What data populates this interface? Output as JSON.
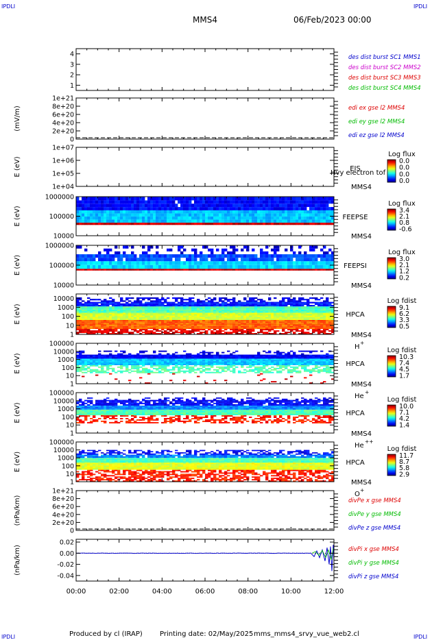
{
  "corner_labels": {
    "tl": "IPDLI",
    "tr": "IPDLI",
    "bl": "IPDLI",
    "br": "IPDLI"
  },
  "header": {
    "spacecraft": "MMS4",
    "date": "06/Feb/2023 00:00"
  },
  "footer": {
    "produced": "Produced by cl (IRAP)",
    "printed": "Printing date: 02/May/2025",
    "script": "mms_mms4_srvy_vue_web2.cl"
  },
  "colors": {
    "mms1": "#0000cc",
    "mms2": "#cc00cc",
    "mms3": "#dd0000",
    "mms4": "#00bb00",
    "x": "#dd0000",
    "y": "#00bb00",
    "z": "#0000cc"
  },
  "chart_data": {
    "type": "heatmap",
    "x_ticks": [
      "00:00",
      "02:00",
      "04:00",
      "06:00",
      "08:00",
      "10:00",
      "12:00"
    ],
    "xlim_hours": [
      0,
      12
    ],
    "panels": [
      {
        "id": "burst",
        "yticks": [
          "4",
          "3",
          "2",
          "1"
        ],
        "ylim": [
          0.5,
          4.5
        ],
        "legend": [
          {
            "text": "des dist burst SC1 MMS1",
            "color": "mms1"
          },
          {
            "text": "des dist burst SC2 MMS2",
            "color": "mms2"
          },
          {
            "text": "des dist burst SC3 MMS3",
            "color": "mms3"
          },
          {
            "text": "des dist burst SC4 MMS4",
            "color": "mms4"
          }
        ]
      },
      {
        "id": "edi",
        "ylabel": "(mV/m)",
        "yticks": [
          "1e+21",
          "8e+20",
          "6e+20",
          "4e+20",
          "2e+20",
          "0"
        ],
        "ylim": [
          0,
          1e+21
        ],
        "legend": [
          {
            "text": "edi ex gse l2 MMS4",
            "color": "x"
          },
          {
            "text": "edi ey gse l2 MMS4",
            "color": "y"
          },
          {
            "text": "edi ez gse l2 MMS4",
            "color": "z"
          }
        ]
      },
      {
        "id": "eis",
        "ylabel": "E (eV)",
        "yticks": [
          "1e+07",
          "1e+06",
          "1e+05",
          "1e+04"
        ],
        "ylim": [
          10000.0,
          10000000.0
        ],
        "log": true,
        "instrument": "EIS",
        "overlay": "Hvy electron tof",
        "sc": "MMS4",
        "cbar_title": "Log flux",
        "cbar": [
          "0.0",
          "0.0",
          "0.0",
          "0.0"
        ]
      },
      {
        "id": "feepse",
        "ylabel": "E (eV)",
        "yticks": [
          "1000000",
          "100000",
          "10000"
        ],
        "ylim": [
          10000.0,
          1000000.0
        ],
        "log": true,
        "instrument": "FEEPSE",
        "sc": "MMS4",
        "cbar_title": "Log flux",
        "cbar": [
          "3.4",
          "2.1",
          "0.8",
          "-0.6"
        ]
      },
      {
        "id": "feepsi",
        "ylabel": "E (eV)",
        "yticks": [
          "1000000",
          "100000",
          "10000"
        ],
        "ylim": [
          10000.0,
          1000000.0
        ],
        "log": true,
        "instrument": "FEEPSI",
        "sc": "MMS4",
        "cbar_title": "Log flux",
        "cbar": [
          "3.0",
          "2.1",
          "1.2",
          "0.2"
        ]
      },
      {
        "id": "hpca_h",
        "ylabel": "E (eV)",
        "yticks": [
          "10000",
          "1000",
          "100",
          "10",
          "1"
        ],
        "ylim": [
          1,
          30000.0
        ],
        "log": true,
        "instrument": "HPCA",
        "sc": "MMS4",
        "species": "H",
        "charge": "+",
        "cbar_title": "Log fdist",
        "cbar": [
          "9.1",
          "6.2",
          "3.3",
          "0.5"
        ]
      },
      {
        "id": "hpca_he1",
        "ylabel": "E (eV)",
        "yticks": [
          "100000",
          "10000",
          "1000",
          "100",
          "10",
          "1"
        ],
        "ylim": [
          1,
          100000.0
        ],
        "log": true,
        "instrument": "HPCA",
        "sc": "MMS4",
        "species": "He",
        "charge": "+",
        "cbar_title": "Log fdist",
        "cbar": [
          "10.3",
          "7.4",
          "4.5",
          "1.7"
        ]
      },
      {
        "id": "hpca_he2",
        "ylabel": "E (eV)",
        "yticks": [
          "100000",
          "10000",
          "1000",
          "100",
          "10",
          "1"
        ],
        "ylim": [
          1,
          100000.0
        ],
        "log": true,
        "instrument": "HPCA",
        "sc": "MMS4",
        "species": "He",
        "charge": "++",
        "cbar_title": "Log fdist",
        "cbar": [
          "10.0",
          "7.1",
          "4.2",
          "1.4"
        ]
      },
      {
        "id": "hpca_o",
        "ylabel": "E (eV)",
        "yticks": [
          "100000",
          "10000",
          "1000",
          "100",
          "10",
          "1"
        ],
        "ylim": [
          1,
          100000.0
        ],
        "log": true,
        "instrument": "HPCA",
        "sc": "MMS4",
        "species": "O",
        "charge": "+",
        "cbar_title": "Log fdist",
        "cbar": [
          "11.7",
          "8.7",
          "5.8",
          "2.9"
        ]
      },
      {
        "id": "divpe",
        "ylabel": "(nPa/km)",
        "yticks": [
          "1e+21",
          "8e+20",
          "6e+20",
          "4e+20",
          "2e+20",
          "0"
        ],
        "ylim": [
          0,
          1e+21
        ],
        "legend": [
          {
            "text": "divPe x gse MMS4",
            "color": "x"
          },
          {
            "text": "divPe y gse MMS4",
            "color": "y"
          },
          {
            "text": "divPe z gse MMS4",
            "color": "z"
          }
        ]
      },
      {
        "id": "divpi",
        "ylabel": "(nPa/km)",
        "yticks": [
          "0.02",
          "0.00",
          "-0.02",
          "-0.04"
        ],
        "ylim": [
          -0.05,
          0.025
        ],
        "legend": [
          {
            "text": "divPi x gse MMS4",
            "color": "x"
          },
          {
            "text": "divPi y gse MMS4",
            "color": "y"
          },
          {
            "text": "divPi z gse MMS4",
            "color": "z"
          }
        ]
      }
    ]
  }
}
